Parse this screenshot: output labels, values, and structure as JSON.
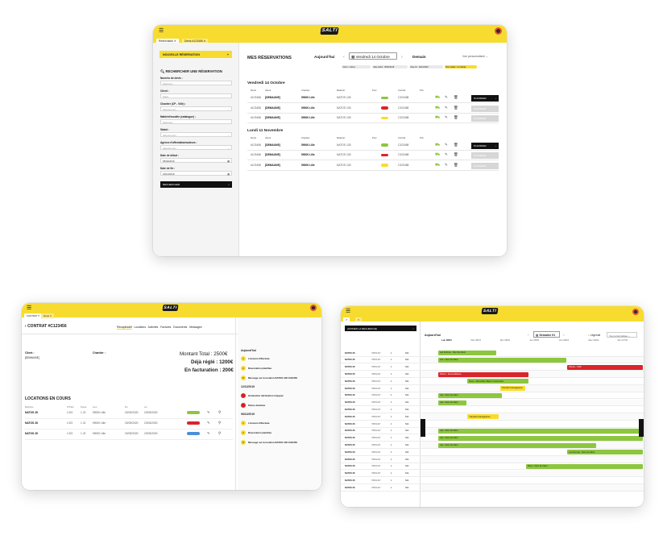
{
  "app": {
    "logo": "SALTI"
  },
  "reservations_screen": {
    "tabs": [
      "Réservation",
      "Devis #123456"
    ],
    "new_button": "NOUVELLE RÉSERVATION",
    "search_title": "RECHERCHER UNE RÉSERVATION",
    "fields": [
      {
        "label": "Numéro de devis :",
        "value": "Saisissez..."
      },
      {
        "label": "Client :",
        "value": "Saisir"
      },
      {
        "label": "Chantier (CP - Ville) :",
        "value": "Sélectionnez..."
      },
      {
        "label": "Matériel/modèle (catalogue) :",
        "value": "Saisissez..."
      },
      {
        "label": "Statut :",
        "value": "Sélectionnez..."
      },
      {
        "label": "Agence d'affectation/auteurs :",
        "value": "Sélectionnez..."
      },
      {
        "label": "Date de début :",
        "value": "05/04/2019"
      },
      {
        "label": "Date de fin :",
        "value": "19/12/2019"
      }
    ],
    "search_button": "RECHERCHER",
    "page_title": "MES RÉSERVATIONS",
    "nav": {
      "prev": "Aujourd'hui",
      "current": "Vendredi 14 Octobre",
      "next": "Demain"
    },
    "sort": "Vue personnalisée",
    "filters": [
      "Client : indéné",
      "Date début : 05/04/2019",
      "Date fin : 19/12/2019",
      "Bon réalisé : les Salsas"
    ],
    "columns": [
      "Devis",
      "Client",
      "Chantier",
      "Matériel",
      "Porc",
      "Contrat",
      "Prix"
    ],
    "groups": [
      {
        "date": "Vendredi 14 Octobre",
        "rows": [
          {
            "devis": "#123458",
            "client": "[DEMAUNE]",
            "chantier": "59000 Lille",
            "materiel": "NATOS 128",
            "contrat": "C323458",
            "action": "PLANIFIER",
            "active": true,
            "status": "green"
          },
          {
            "devis": "#123458",
            "client": "[DEMAUNE]",
            "chantier": "59000 Lille",
            "materiel": "NATOS 128",
            "contrat": "C323458",
            "action": "PLANIFIER",
            "active": false,
            "status": "red"
          },
          {
            "devis": "#123458",
            "client": "[DEMAUNE]",
            "chantier": "59000 Lille",
            "materiel": "NATOS 128",
            "contrat": "C323458",
            "action": "PLANIFIER",
            "active": false,
            "status": "yellow"
          }
        ]
      },
      {
        "date": "Lundi 11 Novembre",
        "rows": [
          {
            "devis": "#123458",
            "client": "[DEMAUNE]",
            "chantier": "59000 Lille",
            "materiel": "NATOS 128",
            "contrat": "C323458",
            "action": "PLANIFIER",
            "active": true,
            "status": "green"
          },
          {
            "devis": "#123458",
            "client": "[DEMAUNE]",
            "chantier": "59000 Lille",
            "materiel": "NATOS 128",
            "contrat": "C323458",
            "action": "PLANIFIER",
            "active": false,
            "status": "red"
          },
          {
            "devis": "#123458",
            "client": "[DEMAUNE]",
            "chantier": "59000 Lille",
            "materiel": "NATOS 128",
            "contrat": "C323458",
            "action": "PLANIFIER",
            "active": false,
            "status": "yellow"
          }
        ]
      }
    ]
  },
  "contract_screen": {
    "title": "CONTRAT #C123456",
    "tabs": [
      "Récapitulatif",
      "Locations",
      "Activités",
      "Factures",
      "Documents",
      "Messages"
    ],
    "client_label": "Client :",
    "client_value": "[DEMAUNE]",
    "chantier_label": "Chantier :",
    "total": "Montant Total : 2500€",
    "paid": "Déjà réglé : 1200€",
    "billing": "En facturation : 200€",
    "locations_title": "LOCATIONS EN COURS",
    "locations_cols": [
      "Machine",
      "N°Parc",
      "Durée",
      "Lieu",
      "Du",
      "Au"
    ],
    "locations": [
      {
        "machine": "NATOS 28",
        "parc": "4 D3",
        "duree": "1 J3",
        "lieu": "59000 Lille",
        "du": "20/03/2020",
        "au": "23/03/2020"
      },
      {
        "machine": "NATOS 28",
        "parc": "4 D3",
        "duree": "1 J3",
        "lieu": "59000 Lille",
        "du": "20/03/2020",
        "au": "23/03/2020"
      },
      {
        "machine": "NATOS 28",
        "parc": "4 D3",
        "duree": "1 J3",
        "lieu": "59000 Lille",
        "du": "20/03/2020",
        "au": "23/03/2020"
      }
    ],
    "timeline_today": "Aujourd'hui",
    "timeline": [
      {
        "label": "Livraison Effectuée",
        "date": ""
      },
      {
        "label": "Réservation planifiée",
        "date": ""
      },
      {
        "label": "Message sur la location NATOS 128 #123456",
        "date": ""
      },
      {
        "label": "",
        "date": "12/12/2019"
      },
      {
        "label": "Génération déclaration impayée",
        "date": ""
      },
      {
        "label": "Panne déclarée",
        "date": ""
      },
      {
        "label": "",
        "date": "06/12/2019"
      },
      {
        "label": "Livraison Effectuée",
        "date": ""
      },
      {
        "label": "Réservation planifiée",
        "date": ""
      },
      {
        "label": "Message sur la location NATOS 128 #123456",
        "date": ""
      }
    ]
  },
  "planning_screen": {
    "sidebar_button": "AFFINER LA RECHERCHE",
    "top_label": "Aujourd'hui",
    "week": "Semaine 01",
    "legend": "Légende",
    "view": "Vue personnalisée",
    "days": [
      "Lun 08/01",
      "Mar 08/01",
      "Mer 08/01",
      "Jeu 08/01",
      "Ven 08/01",
      "Sam 08/01",
      "Dim 07/01"
    ],
    "bars": [
      {
        "row": 0,
        "start": 0,
        "span": 2.0,
        "label": "Les Fermes - Nom du client",
        "color": "#8dc63f"
      },
      {
        "row": 1,
        "start": 0,
        "span": 4.4,
        "label": "Lau - Nom du client",
        "color": "#8dc63f"
      },
      {
        "row": 2,
        "start": 4.4,
        "span": 2.6,
        "label": "Panne - VGP",
        "color": "#d9252b"
      },
      {
        "row": 3,
        "start": 0,
        "span": 3.1,
        "label": "Panne - Sous-traitance",
        "color": "#d9252b"
      },
      {
        "row": 4,
        "start": 1.0,
        "span": 2.1,
        "label": "Récu - Démolition Baert Construction",
        "color": "#8dc63f"
      },
      {
        "row": 5,
        "start": 2.1,
        "span": 0.9,
        "label": "Transfert Intérageance",
        "color": "#f7dc2f"
      },
      {
        "row": 6,
        "start": 0,
        "span": 2.2,
        "label": "Lau - Nom du client",
        "color": "#8dc63f"
      },
      {
        "row": 7,
        "start": 0,
        "span": 1.0,
        "label": "Lau - Nom du client",
        "color": "#8dc63f"
      },
      {
        "row": 9,
        "start": 1.0,
        "span": 1.1,
        "label": "Transfert Intérageance",
        "color": "#f7dc2f"
      },
      {
        "row": 11,
        "start": 0,
        "span": 7.0,
        "label": "Lau - Nom du client",
        "color": "#8dc63f"
      },
      {
        "row": 12,
        "start": 0,
        "span": 7.0,
        "label": "Lau - Nom du client",
        "color": "#8dc63f"
      },
      {
        "row": 13,
        "start": 0,
        "span": 5.4,
        "label": "Lau - Nom du client",
        "color": "#8dc63f"
      },
      {
        "row": 14,
        "start": 4.4,
        "span": 2.6,
        "label": "Les Fermes - Nom du client",
        "color": "#8dc63f"
      },
      {
        "row": 16,
        "start": 3.0,
        "span": 4.0,
        "label": "Récu - Nom du client",
        "color": "#8dc63f"
      }
    ],
    "machine": "NATOS 28",
    "parc": "78961437",
    "qty": "1",
    "agence": "NIA",
    "last_row_status": "À affecter"
  }
}
